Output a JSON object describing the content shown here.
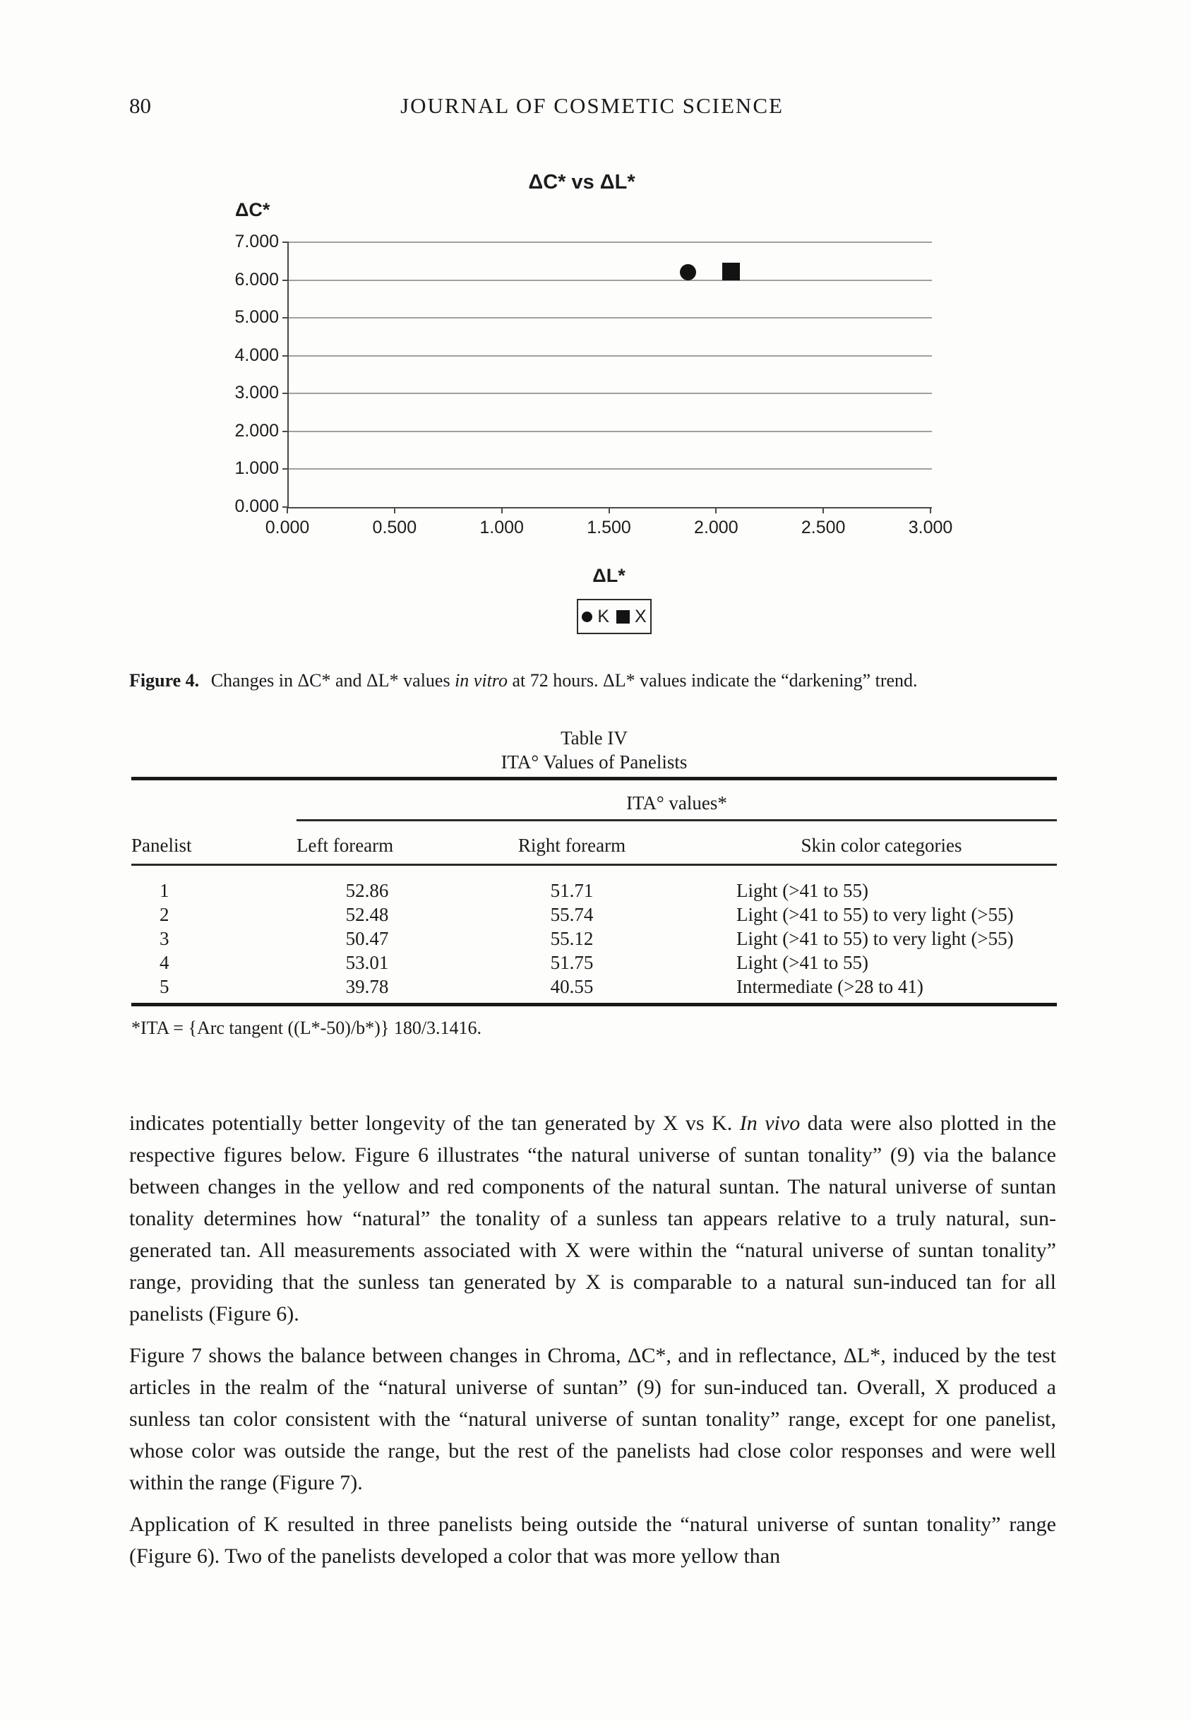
{
  "page": {
    "number": "80",
    "running_head": "JOURNAL OF COSMETIC SCIENCE"
  },
  "chart": {
    "title": "ΔC* vs ΔL*",
    "y_axis_label": "ΔC*",
    "x_axis_label": "ΔL*",
    "legend": [
      {
        "marker": "circle",
        "label": "K"
      },
      {
        "marker": "square",
        "label": "X"
      }
    ]
  },
  "chart_data": {
    "type": "scatter",
    "title": "ΔC* vs ΔL*",
    "xlabel": "ΔL*",
    "ylabel": "ΔC*",
    "xlim": [
      0,
      3
    ],
    "ylim": [
      0,
      7
    ],
    "x_ticks": [
      0,
      0.5,
      1,
      1.5,
      2,
      2.5,
      3
    ],
    "y_ticks": [
      0,
      1,
      2,
      3,
      4,
      5,
      6,
      7
    ],
    "tick_decimals": 3,
    "grid": "horizontal",
    "legend_position": "below",
    "series": [
      {
        "name": "K",
        "marker": "circle",
        "points": [
          [
            1.87,
            6.2
          ]
        ]
      },
      {
        "name": "X",
        "marker": "square",
        "points": [
          [
            2.07,
            6.23
          ]
        ]
      }
    ]
  },
  "figure_caption": {
    "segments": [
      {
        "t": "Figure 4.",
        "b": 1
      },
      {
        "t": " Changes in ΔC* and ΔL* values "
      },
      {
        "t": "in vitro",
        "i": 1
      },
      {
        "t": " at 72 hours. ΔL* values indicate the “darkening” trend."
      }
    ]
  },
  "table": {
    "title": "Table IV",
    "subtitle": "ITA° Values of Panelists",
    "group_header": "ITA° values*",
    "columns": [
      "Panelist",
      "Left forearm",
      "Right forearm",
      "Skin color categories"
    ],
    "rows": [
      [
        "1",
        "52.86",
        "51.71",
        "Light (>41 to 55)"
      ],
      [
        "2",
        "52.48",
        "55.74",
        "Light (>41 to 55) to very light (>55)"
      ],
      [
        "3",
        "50.47",
        "55.12",
        "Light (>41 to 55) to very light (>55)"
      ],
      [
        "4",
        "53.01",
        "51.75",
        "Light (>41 to 55)"
      ],
      [
        "5",
        "39.78",
        "40.55",
        "Intermediate (>28 to 41)"
      ]
    ],
    "footnote": "*ITA = {Arc tangent ((L*-50)/b*)} 180/3.1416."
  },
  "body": {
    "paragraphs": [
      {
        "segments": [
          {
            "t": "indicates potentially better longevity of the tan generated by X vs K. "
          },
          {
            "t": "In vivo",
            "i": 1
          },
          {
            "t": " data were also plotted in the respective figures below. Figure 6 illustrates “the natural universe of suntan tonality” (9) via the balance between changes in the yellow and red components of the natural suntan. The natural universe of suntan tonality determines how “natural” the tonality of a sunless tan appears relative to a truly natural, sun-generated tan. All measurements associated with X were within the “natural universe of suntan tonality” range, providing that the sunless tan generated by X is comparable to a natural sun-induced tan for all panelists (Figure 6)."
          }
        ]
      },
      {
        "segments": [
          {
            "t": "Figure 7 shows the balance between changes in Chroma, ΔC*, and in reflectance, ΔL*, induced by the test articles in the realm of the “natural universe of suntan” (9) for sun-induced tan. Overall, X produced a sunless tan color consistent with the “natural universe of suntan tonality” range, except for one panelist, whose color was outside the range, but the rest of the panelists had close color responses and were well within the range (Figure 7)."
          }
        ]
      },
      {
        "segments": [
          {
            "t": "Application of K resulted in three panelists being outside the “natural universe of suntan tonality” range (Figure 6). Two of the panelists developed a color that was more yellow than"
          }
        ]
      }
    ]
  }
}
